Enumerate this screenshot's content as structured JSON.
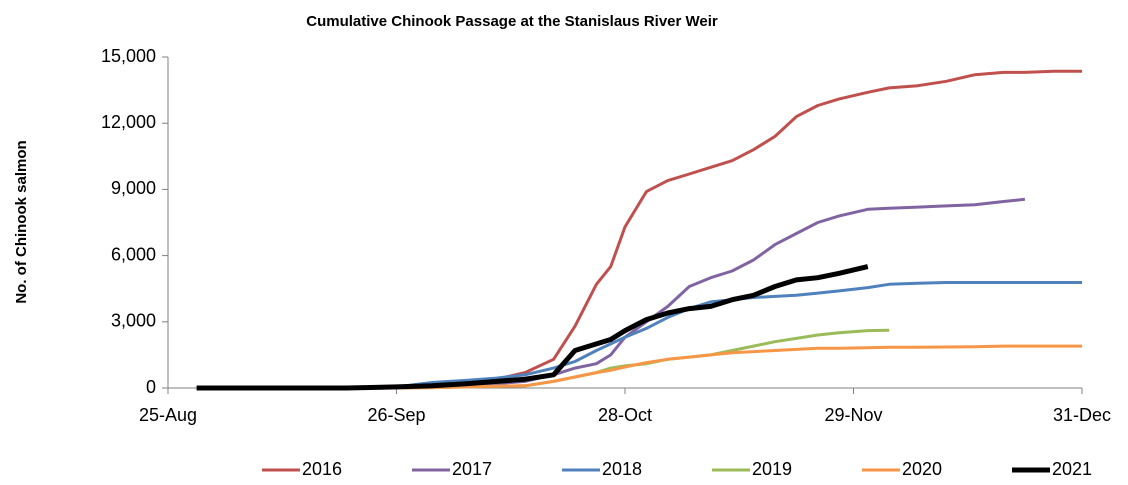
{
  "chart_data": {
    "type": "line",
    "title": "Cumulative Chinook Passage at the Stanislaus River Weir",
    "ylabel": "No. of Chinook salmon",
    "x": [
      "29-Aug",
      "5-Sep",
      "12-Sep",
      "19-Sep",
      "26-Sep",
      "1-Oct",
      "6-Oct",
      "10-Oct",
      "14-Oct",
      "18-Oct",
      "21-Oct",
      "24-Oct",
      "26-Oct",
      "28-Oct",
      "31-Oct",
      "3-Nov",
      "6-Nov",
      "9-Nov",
      "12-Nov",
      "15-Nov",
      "18-Nov",
      "21-Nov",
      "24-Nov",
      "27-Nov",
      "1-Dec",
      "4-Dec",
      "8-Dec",
      "12-Dec",
      "16-Dec",
      "20-Dec",
      "23-Dec",
      "27-Dec",
      "31-Dec"
    ],
    "xlim": [
      "25-Aug",
      "31-Dec"
    ],
    "xticks": [
      "25-Aug",
      "26-Sep",
      "28-Oct",
      "29-Nov",
      "31-Dec"
    ],
    "ylim": [
      0,
      15000
    ],
    "yticks": [
      {
        "value": 0,
        "label": "0"
      },
      {
        "value": 3000,
        "label": "3,000"
      },
      {
        "value": 6000,
        "label": "6,000"
      },
      {
        "value": 9000,
        "label": "9,000"
      },
      {
        "value": 12000,
        "label": "12,000"
      },
      {
        "value": 15000,
        "label": "15,000"
      }
    ],
    "grid": false,
    "legend": "bottom",
    "series": [
      {
        "name": "2016",
        "color": "#c0504d",
        "values": [
          0,
          0,
          0,
          0,
          50,
          100,
          200,
          400,
          700,
          1300,
          2800,
          4700,
          5500,
          7300,
          8900,
          9400,
          9700,
          10000,
          10300,
          10800,
          11400,
          12300,
          12800,
          13100,
          13400,
          13600,
          13700,
          13900,
          14200,
          14300,
          14300,
          14350,
          14350
        ]
      },
      {
        "name": "2017",
        "color": "#8064a2",
        "values": [
          0,
          0,
          0,
          0,
          20,
          60,
          120,
          200,
          300,
          600,
          900,
          1100,
          1500,
          2300,
          3000,
          3700,
          4600,
          5000,
          5300,
          5800,
          6500,
          7000,
          7500,
          7800,
          8100,
          8150,
          8200,
          8250,
          8300,
          8450,
          8550,
          null,
          null
        ]
      },
      {
        "name": "2018",
        "color": "#4f81bd",
        "values": [
          0,
          0,
          0,
          0,
          50,
          250,
          350,
          450,
          600,
          900,
          1200,
          1700,
          2000,
          2300,
          2700,
          3200,
          3600,
          3900,
          4000,
          4100,
          4150,
          4200,
          4300,
          4400,
          4550,
          4700,
          4750,
          4780,
          4780,
          4780,
          4780,
          4780,
          4780
        ]
      },
      {
        "name": "2019",
        "color": "#9bbb59",
        "values": [
          0,
          0,
          0,
          0,
          0,
          20,
          50,
          80,
          100,
          300,
          500,
          700,
          900,
          1000,
          1100,
          1300,
          1400,
          1500,
          1700,
          1900,
          2100,
          2250,
          2400,
          2500,
          2600,
          2620,
          null,
          null,
          null,
          null,
          null,
          null,
          null
        ]
      },
      {
        "name": "2020",
        "color": "#f79646",
        "values": [
          0,
          0,
          0,
          0,
          0,
          20,
          50,
          80,
          100,
          300,
          500,
          700,
          800,
          950,
          1150,
          1300,
          1400,
          1500,
          1600,
          1650,
          1700,
          1750,
          1800,
          1800,
          1820,
          1850,
          1850,
          1860,
          1870,
          1900,
          1900,
          1900,
          1900
        ]
      },
      {
        "name": "2021",
        "color": "#000000",
        "values": [
          0,
          0,
          0,
          0,
          50,
          100,
          200,
          300,
          400,
          600,
          1700,
          2000,
          2200,
          2600,
          3100,
          3400,
          3600,
          3700,
          4000,
          4200,
          4600,
          4900,
          5000,
          5200,
          5500,
          null,
          null,
          null,
          null,
          null,
          null,
          null,
          null
        ]
      }
    ]
  }
}
